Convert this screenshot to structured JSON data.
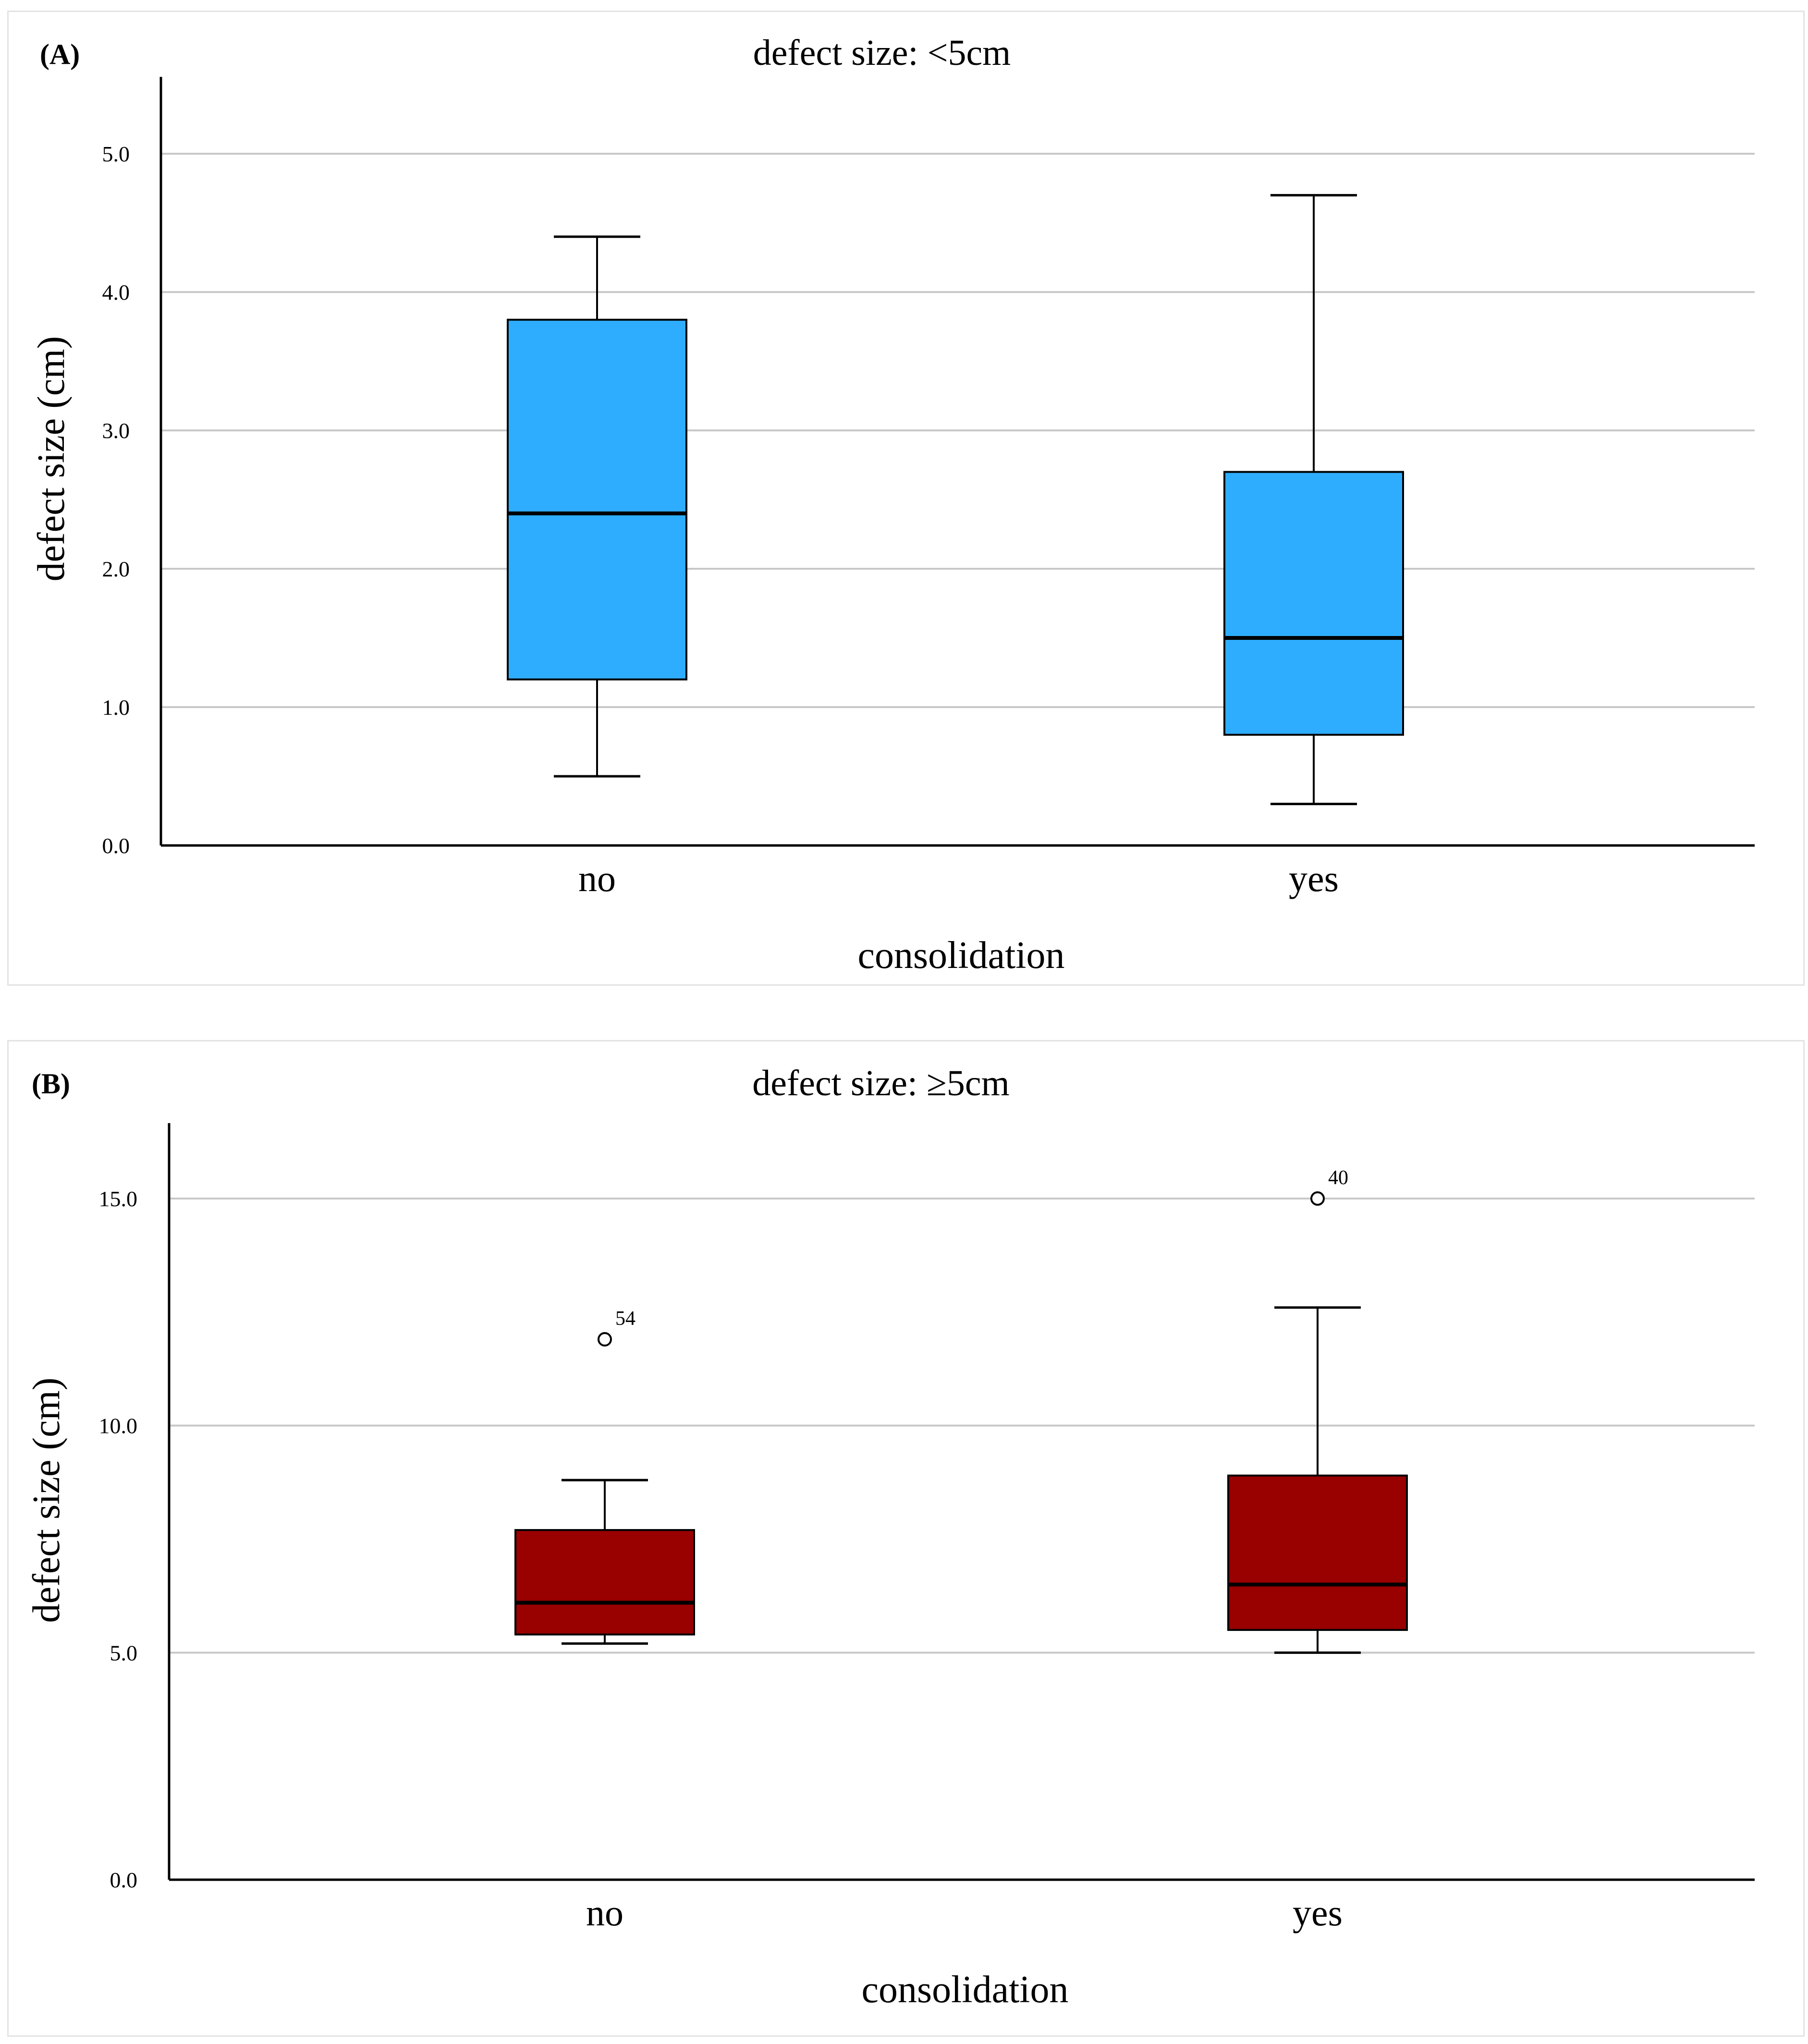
{
  "colors": {
    "panel_a_box": "#2EADFF",
    "panel_b_box": "#990000",
    "grid": "#c8c8c8",
    "axis": "#000000"
  },
  "chart_data": [
    {
      "type": "boxplot",
      "panel": "(A)",
      "title": "defect size: <5cm",
      "xlabel": "consolidation",
      "ylabel": "defect size (cm)",
      "categories": [
        "no",
        "yes"
      ],
      "ylim": [
        0,
        5.5
      ],
      "yticks": [
        "0.0",
        "1.0",
        "2.0",
        "3.0",
        "4.0",
        "5.0"
      ],
      "ytick_values": [
        0,
        1,
        2,
        3,
        4,
        5
      ],
      "grid": true,
      "box_color": "#2EADFF",
      "boxes": [
        {
          "category": "no",
          "whisker_low": 0.5,
          "q1": 1.2,
          "median": 2.4,
          "q3": 3.8,
          "whisker_high": 4.4,
          "outliers": []
        },
        {
          "category": "yes",
          "whisker_low": 0.3,
          "q1": 0.8,
          "median": 1.5,
          "q3": 2.7,
          "whisker_high": 4.7,
          "outliers": []
        }
      ]
    },
    {
      "type": "boxplot",
      "panel": "(B)",
      "title": "defect size: ≥5cm",
      "xlabel": "consolidation",
      "ylabel": "defect size (cm)",
      "categories": [
        "no",
        "yes"
      ],
      "ylim": [
        0,
        16.6
      ],
      "yticks": [
        "0.0",
        "5.0",
        "10.0",
        "15.0"
      ],
      "ytick_values": [
        0,
        5,
        10,
        15
      ],
      "grid": true,
      "box_color": "#990000",
      "boxes": [
        {
          "category": "no",
          "whisker_low": 5.2,
          "q1": 5.4,
          "median": 6.1,
          "q3": 7.7,
          "whisker_high": 8.8,
          "outliers": [
            {
              "value": 11.9,
              "label": "54"
            }
          ]
        },
        {
          "category": "yes",
          "whisker_low": 5.0,
          "q1": 5.5,
          "median": 6.5,
          "q3": 8.9,
          "whisker_high": 12.6,
          "outliers": [
            {
              "value": 15.0,
              "label": "40"
            }
          ]
        }
      ]
    }
  ]
}
